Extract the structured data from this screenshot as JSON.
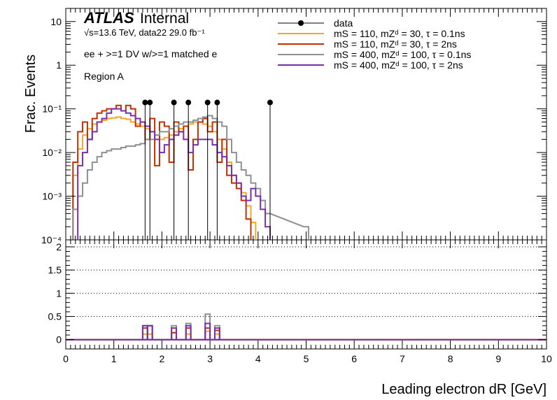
{
  "chart_data": [
    {
      "type": "line",
      "step": true,
      "ylabel": "Frac. Events",
      "xlabel": "",
      "ylog": true,
      "ylim": [
        0.0001,
        20
      ],
      "xlim": [
        0,
        10
      ],
      "yticks": [
        "10",
        "1",
        "10⁻¹",
        "10⁻²",
        "10⁻³",
        "10⁻⁴"
      ],
      "ytick_values": [
        10,
        1,
        0.1,
        0.01,
        0.001,
        0.0001
      ],
      "annotations": {
        "atlas": "ATLAS",
        "internal": "Internal",
        "energy_lumi": "√s=13.6 TeV, data22 29.0 fb⁻¹",
        "selection": "ee + >=1 DV w/>=1 matched e",
        "region": "Region A"
      },
      "legend_position": "top-right",
      "data_points": {
        "name": "data",
        "x": [
          1.65,
          1.75,
          2.25,
          2.55,
          2.95,
          3.15,
          4.25
        ],
        "y": [
          0.14,
          0.14,
          0.14,
          0.14,
          0.14,
          0.14,
          0.14
        ]
      },
      "series": [
        {
          "name": "mS = 110, mZᵈ = 30, τ = 0.1ns",
          "color": "#f5a623",
          "x": [
            0.2,
            0.3,
            0.4,
            0.5,
            0.6,
            0.7,
            0.8,
            0.9,
            1.0,
            1.1,
            1.2,
            1.3,
            1.4,
            1.5,
            1.6,
            1.7,
            1.8,
            1.9,
            2.0,
            2.1,
            2.2,
            2.3,
            2.4,
            2.5,
            2.6,
            2.7,
            2.8,
            2.9,
            3.0,
            3.1,
            3.2,
            3.3,
            3.4,
            3.5,
            3.6,
            3.7,
            3.8,
            3.9
          ],
          "y": [
            0.003,
            0.012,
            0.025,
            0.035,
            0.045,
            0.05,
            0.055,
            0.06,
            0.062,
            0.065,
            0.06,
            0.058,
            0.05,
            0.045,
            0.04,
            0.035,
            0.03,
            0.025,
            0.02,
            0.022,
            0.025,
            0.03,
            0.035,
            0.04,
            0.045,
            0.05,
            0.05,
            0.045,
            0.04,
            0.03,
            0.02,
            0.012,
            0.006,
            0.003,
            0.002,
            0.0012,
            0.0006,
            0.00025
          ]
        },
        {
          "name": "mS = 110, mZᵈ = 30, τ = 2ns",
          "color": "#c03000",
          "x": [
            0.2,
            0.3,
            0.4,
            0.5,
            0.6,
            0.7,
            0.8,
            0.9,
            1.0,
            1.1,
            1.2,
            1.3,
            1.4,
            1.5,
            1.6,
            1.7,
            1.8,
            1.9,
            2.0,
            2.1,
            2.2,
            2.3,
            2.4,
            2.5,
            2.6,
            2.7,
            2.8,
            2.9,
            3.0,
            3.1,
            3.2,
            3.3,
            3.4,
            3.5,
            3.6,
            3.7,
            3.8
          ],
          "y": [
            0.006,
            0.03,
            0.05,
            0.02,
            0.06,
            0.08,
            0.09,
            0.1,
            0.1,
            0.12,
            0.09,
            0.12,
            0.1,
            0.04,
            0.05,
            0.02,
            0.06,
            0.005,
            0.05,
            0.04,
            0.006,
            0.05,
            0.03,
            0.04,
            0.004,
            0.02,
            0.05,
            0.06,
            0.03,
            0.05,
            0.006,
            0.02,
            0.003,
            0.002,
            0.0015,
            0.0008,
            0.0003
          ]
        },
        {
          "name": "mS = 400, mZᵈ = 100, τ = 0.1ns",
          "color": "#8c9196",
          "x": [
            0.2,
            0.3,
            0.4,
            0.5,
            0.6,
            0.7,
            0.8,
            0.9,
            1.0,
            1.1,
            1.2,
            1.3,
            1.4,
            1.5,
            1.6,
            1.7,
            1.8,
            1.9,
            2.0,
            2.1,
            2.2,
            2.3,
            2.4,
            2.5,
            2.6,
            2.7,
            2.8,
            2.9,
            3.0,
            3.1,
            3.2,
            3.3,
            3.4,
            3.5,
            3.6,
            3.7,
            3.8,
            3.9,
            4.0,
            4.1,
            4.2,
            5.0
          ],
          "y": [
            0.0005,
            0.001,
            0.002,
            0.004,
            0.006,
            0.008,
            0.01,
            0.011,
            0.012,
            0.012,
            0.013,
            0.014,
            0.014,
            0.015,
            0.016,
            0.02,
            0.02,
            0.025,
            0.03,
            0.03,
            0.035,
            0.04,
            0.045,
            0.05,
            0.05,
            0.055,
            0.06,
            0.065,
            0.07,
            0.06,
            0.05,
            0.04,
            0.02,
            0.01,
            0.006,
            0.004,
            0.003,
            0.002,
            0.0015,
            0.0008,
            0.0004,
            0.0002
          ]
        },
        {
          "name": "mS = 400, mZᵈ = 100, τ = 2ns",
          "color": "#7a2ea8",
          "x": [
            0.3,
            0.4,
            0.5,
            0.6,
            0.7,
            0.8,
            0.9,
            1.0,
            1.1,
            1.2,
            1.3,
            1.4,
            1.5,
            1.6,
            1.7,
            1.8,
            1.9,
            2.0,
            2.1,
            2.2,
            2.3,
            2.4,
            2.5,
            2.6,
            2.7,
            2.8,
            2.9,
            3.0,
            3.1,
            3.2,
            3.3,
            3.4,
            3.5,
            3.6,
            3.7,
            3.8,
            3.9,
            4.0,
            4.1,
            4.2
          ],
          "y": [
            0.005,
            0.01,
            0.02,
            0.03,
            0.05,
            0.06,
            0.08,
            0.1,
            0.1,
            0.09,
            0.08,
            0.07,
            0.06,
            0.05,
            0.04,
            0.03,
            0.02,
            0.01,
            0.015,
            0.02,
            0.025,
            0.03,
            0.02,
            0.01,
            0.015,
            0.02,
            0.02,
            0.02,
            0.015,
            0.01,
            0.008,
            0.005,
            0.003,
            0.002,
            0.001,
            0.0008,
            0.0015,
            0.001,
            0.0005,
            0.0002
          ]
        }
      ]
    },
    {
      "type": "line",
      "step": true,
      "xlabel": "Leading electron dR [GeV]",
      "ylabel": "",
      "ylim": [
        -0.2,
        2.15
      ],
      "xlim": [
        0,
        10
      ],
      "xticks": [
        "0",
        "1",
        "2",
        "3",
        "4",
        "5",
        "6",
        "7",
        "8",
        "9",
        "10"
      ],
      "xtick_values": [
        0,
        1,
        2,
        3,
        4,
        5,
        6,
        7,
        8,
        9,
        10
      ],
      "yticks": [
        "0",
        "0.5",
        "1",
        "1.5",
        "2"
      ],
      "ytick_values": [
        0,
        0.5,
        1,
        1.5,
        2
      ],
      "grid_y": [
        0.5,
        1,
        1.5,
        2
      ],
      "series": [
        {
          "name": "mS = 110, mZᵈ = 30, τ = 0.1ns",
          "color": "#f5a623",
          "x": [
            1.65,
            1.75,
            2.25,
            2.55,
            2.95,
            3.15
          ],
          "y": [
            0.12,
            0.12,
            0.15,
            0.12,
            0.18,
            0.12
          ]
        },
        {
          "name": "mS = 110, mZᵈ = 30, τ = 2ns",
          "color": "#c03000",
          "x": [
            1.65,
            1.75,
            2.25,
            2.55,
            2.95,
            3.15
          ],
          "y": [
            0.25,
            0.3,
            0.15,
            0.25,
            0.25,
            0.2
          ]
        },
        {
          "name": "mS = 400, mZᵈ = 100, τ = 0.1ns",
          "color": "#8c9196",
          "x": [
            1.65,
            1.75,
            2.25,
            2.55,
            2.95,
            3.15
          ],
          "y": [
            0.3,
            0.3,
            0.3,
            0.35,
            0.55,
            0.3
          ]
        },
        {
          "name": "mS = 400, mZᵈ = 100, τ = 2ns",
          "color": "#7a2ea8",
          "x": [
            1.65,
            1.75,
            2.25,
            2.55,
            2.95,
            3.15
          ],
          "y": [
            0.3,
            0.3,
            0.25,
            0.3,
            0.35,
            0.25
          ]
        }
      ]
    }
  ]
}
